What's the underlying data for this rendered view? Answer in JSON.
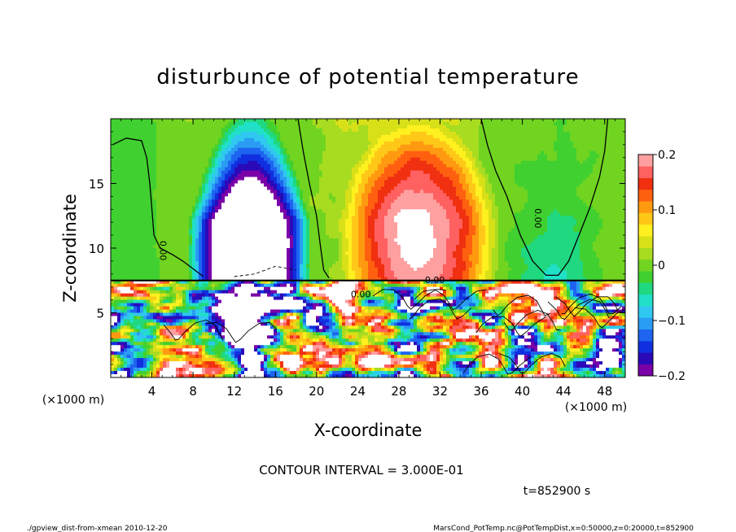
{
  "chart_data": {
    "type": "heatmap",
    "title": "disturbunce of potential temperature",
    "xlabel": "X-coordinate",
    "ylabel": "Z-coordinate",
    "x_unit_label": "(×1000 m)",
    "y_unit_label": "(×1000 m)",
    "xlim": [
      0,
      50
    ],
    "ylim": [
      0,
      20
    ],
    "x_ticks": [
      "4",
      "8",
      "12",
      "16",
      "20",
      "24",
      "28",
      "32",
      "36",
      "40",
      "44",
      "48"
    ],
    "x_tick_values": [
      4,
      8,
      12,
      16,
      20,
      24,
      28,
      32,
      36,
      40,
      44,
      48
    ],
    "y_ticks": [
      "5",
      "10",
      "15"
    ],
    "y_tick_values": [
      5,
      10,
      15
    ],
    "colorbar": {
      "range": [
        -0.2,
        0.2
      ],
      "ticks": [
        "0.2",
        "0.1",
        "0",
        "−0.1",
        "−0.2"
      ],
      "tick_values": [
        0.2,
        0.1,
        0,
        -0.1,
        -0.2
      ],
      "colors": [
        "#7a00a8",
        "#2a0ab8",
        "#1030e0",
        "#1e64f0",
        "#2a9cf4",
        "#30c8f0",
        "#20e0c8",
        "#20d880",
        "#40d030",
        "#70d420",
        "#a8dc20",
        "#d8e018",
        "#fff020",
        "#ffc818",
        "#ff9a10",
        "#ff6010",
        "#f03010",
        "#ff6060",
        "#ffa0a0"
      ]
    },
    "field_features": [
      {
        "kind": "negative-plume",
        "x_center": 13.5,
        "z_base": 7.5,
        "z_top": 19,
        "half_width": 6,
        "level": -0.2
      },
      {
        "kind": "positive-region",
        "x_center": 30,
        "z_center": 10.5,
        "half_width": 8,
        "level": 0.15
      },
      {
        "kind": "turbulent-layer",
        "z_range": [
          0,
          7.5
        ]
      }
    ],
    "contour_label": "0.00",
    "contour_interval_text": "CONTOUR INTERVAL = 3.000E-01",
    "time_text": "t=852900 s"
  },
  "footer": {
    "left": "./gpview_dist-from-xmean  2010-12-20",
    "right": "MarsCond_PotTemp.nc@PotTempDist,x=0:50000,z=0:20000,t=852900"
  }
}
